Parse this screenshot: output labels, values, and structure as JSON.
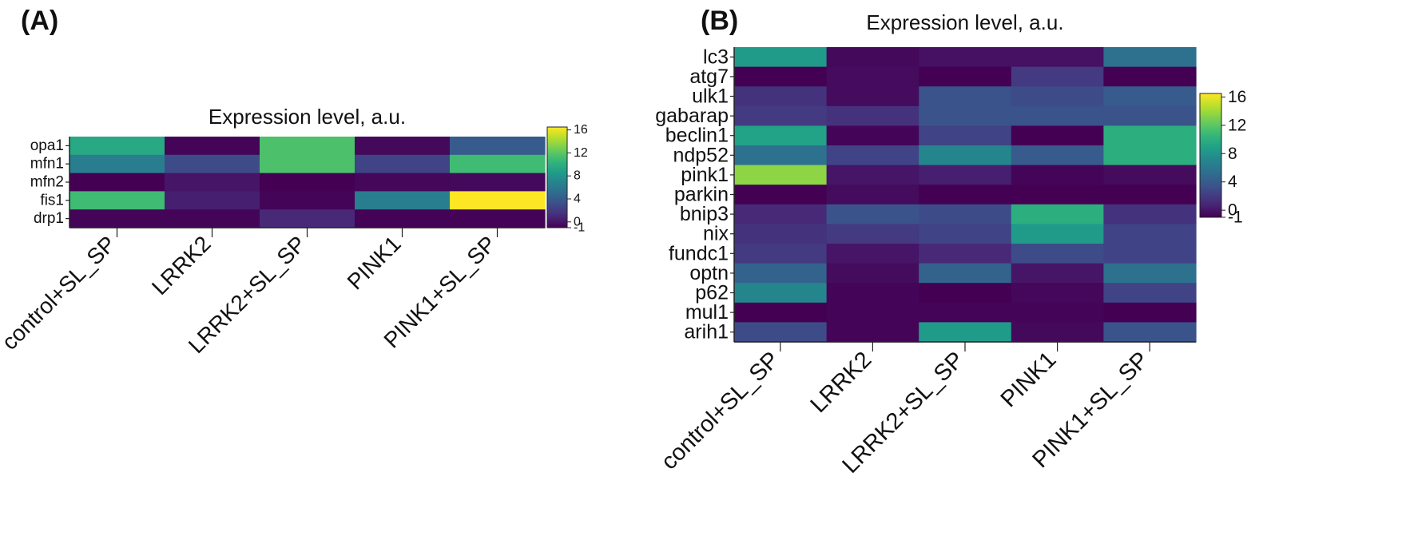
{
  "panel_a": {
    "label": "(A)"
  },
  "panel_b": {
    "label": "(B)"
  },
  "chart_data": [
    {
      "type": "heatmap",
      "title": "Expression level, a.u.",
      "rows": [
        "opa1",
        "mfn1",
        "mfn2",
        "fis1",
        "drp1"
      ],
      "columns": [
        "control+SL_SP",
        "LRRK2",
        "LRRK2+SL_SP",
        "PINK1",
        "PINK1+SL_SP"
      ],
      "values": [
        [
          9.5,
          -0.8,
          11.5,
          -0.6,
          4.0
        ],
        [
          6.5,
          3.0,
          11.5,
          2.5,
          11.0
        ],
        [
          -1.0,
          0.0,
          -1.0,
          -0.7,
          -0.6
        ],
        [
          11.0,
          0.5,
          -0.8,
          6.5,
          16.5
        ],
        [
          -0.8,
          -0.8,
          1.0,
          -0.9,
          -0.9
        ]
      ],
      "colorbar": {
        "min": -1,
        "max": 16.5,
        "ticks": [
          16,
          12,
          8,
          4,
          0,
          -1
        ]
      },
      "colormap": "viridis"
    },
    {
      "type": "heatmap",
      "title": "Expression level, a.u.",
      "rows": [
        "lc3",
        "atg7",
        "ulk1",
        "gabarap",
        "beclin1",
        "ndp52",
        "pink1",
        "parkin",
        "bnip3",
        "nix",
        "fundc1",
        "optn",
        "p62",
        "mul1",
        "arih1"
      ],
      "columns": [
        "control+SL_SP",
        "LRRK2",
        "LRRK2+SL_SP",
        "PINK1",
        "PINK1+SL_SP"
      ],
      "values": [
        [
          8.5,
          -0.6,
          -0.2,
          -0.2,
          5.5
        ],
        [
          -1.0,
          -0.5,
          -1.0,
          2.0,
          -1.0
        ],
        [
          1.5,
          -0.5,
          3.5,
          3.0,
          4.0
        ],
        [
          2.0,
          1.5,
          3.5,
          3.5,
          3.5
        ],
        [
          9.0,
          -0.8,
          2.5,
          -1.0,
          10.0
        ],
        [
          5.5,
          2.5,
          7.0,
          4.0,
          10.0
        ],
        [
          13.5,
          0.0,
          0.5,
          -0.8,
          -0.5
        ],
        [
          -1.0,
          -0.5,
          -1.0,
          -1.0,
          -1.0
        ],
        [
          1.0,
          3.5,
          3.0,
          10.0,
          1.5
        ],
        [
          1.5,
          2.0,
          2.5,
          8.5,
          2.5
        ],
        [
          2.0,
          0.0,
          1.0,
          3.0,
          2.5
        ],
        [
          4.5,
          -0.5,
          4.5,
          0.0,
          5.5
        ],
        [
          7.0,
          -0.8,
          -1.0,
          -0.7,
          2.5
        ],
        [
          -1.0,
          -0.8,
          -0.8,
          -0.8,
          -1.0
        ],
        [
          3.0,
          -0.8,
          8.5,
          -0.6,
          3.5
        ]
      ],
      "colorbar": {
        "min": -1,
        "max": 16.5,
        "ticks": [
          16,
          12,
          8,
          4,
          0,
          -1
        ]
      },
      "colormap": "viridis"
    }
  ]
}
